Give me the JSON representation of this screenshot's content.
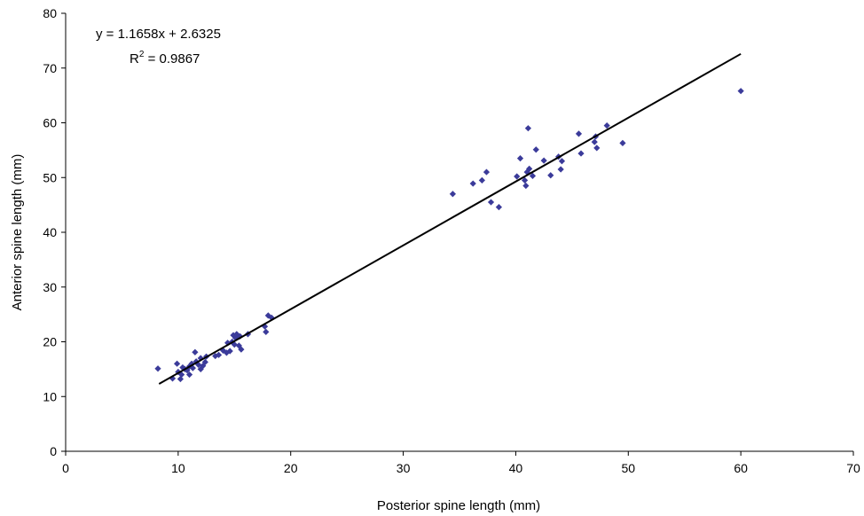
{
  "chart_data": {
    "type": "scatter",
    "xlabel": "Posterior spine length (mm)",
    "ylabel": "Anterior spine length (mm)",
    "xlim": [
      0,
      70
    ],
    "ylim": [
      0,
      80
    ],
    "xticks": [
      0,
      10,
      20,
      30,
      40,
      50,
      60,
      70
    ],
    "yticks": [
      0,
      10,
      20,
      30,
      40,
      50,
      60,
      70,
      80
    ],
    "grid": false,
    "marker_color": "#3b3b9a",
    "trendline": {
      "slope": 1.1658,
      "intercept": 2.6325,
      "x_range": [
        8.3,
        60
      ],
      "color": "#000000"
    },
    "annotation": {
      "equation": "y = 1.1658x + 2.6325",
      "r2_prefix": "R",
      "r2_sup": "2",
      "r2_value": " = 0.9867"
    },
    "points": [
      {
        "x": 8.2,
        "y": 15.1
      },
      {
        "x": 9.5,
        "y": 13.3
      },
      {
        "x": 9.9,
        "y": 16.0
      },
      {
        "x": 10.0,
        "y": 14.5
      },
      {
        "x": 10.2,
        "y": 13.2
      },
      {
        "x": 10.3,
        "y": 14.0
      },
      {
        "x": 10.4,
        "y": 15.3
      },
      {
        "x": 10.6,
        "y": 15.0
      },
      {
        "x": 10.8,
        "y": 14.8
      },
      {
        "x": 11.0,
        "y": 15.5
      },
      {
        "x": 11.0,
        "y": 14.0
      },
      {
        "x": 11.2,
        "y": 16.0
      },
      {
        "x": 11.3,
        "y": 15.2
      },
      {
        "x": 11.5,
        "y": 18.1
      },
      {
        "x": 11.6,
        "y": 16.4
      },
      {
        "x": 11.8,
        "y": 15.8
      },
      {
        "x": 12.0,
        "y": 15.0
      },
      {
        "x": 12.0,
        "y": 17.0
      },
      {
        "x": 12.2,
        "y": 15.6
      },
      {
        "x": 12.4,
        "y": 16.3
      },
      {
        "x": 12.5,
        "y": 17.3
      },
      {
        "x": 13.3,
        "y": 17.4
      },
      {
        "x": 13.6,
        "y": 17.6
      },
      {
        "x": 14.0,
        "y": 18.4
      },
      {
        "x": 14.3,
        "y": 18.0
      },
      {
        "x": 14.4,
        "y": 19.8
      },
      {
        "x": 14.6,
        "y": 18.3
      },
      {
        "x": 14.8,
        "y": 20.0
      },
      {
        "x": 14.9,
        "y": 21.2
      },
      {
        "x": 15.0,
        "y": 19.5
      },
      {
        "x": 15.1,
        "y": 20.7
      },
      {
        "x": 15.2,
        "y": 21.4
      },
      {
        "x": 15.4,
        "y": 19.3
      },
      {
        "x": 15.5,
        "y": 21.0
      },
      {
        "x": 15.6,
        "y": 18.6
      },
      {
        "x": 16.2,
        "y": 21.4
      },
      {
        "x": 17.7,
        "y": 22.8
      },
      {
        "x": 17.8,
        "y": 21.8
      },
      {
        "x": 18.0,
        "y": 24.8
      },
      {
        "x": 18.3,
        "y": 24.4
      },
      {
        "x": 34.4,
        "y": 47.0
      },
      {
        "x": 36.2,
        "y": 48.9
      },
      {
        "x": 37.0,
        "y": 49.5
      },
      {
        "x": 37.4,
        "y": 51.0
      },
      {
        "x": 37.8,
        "y": 45.5
      },
      {
        "x": 38.5,
        "y": 44.6
      },
      {
        "x": 40.1,
        "y": 50.2
      },
      {
        "x": 40.4,
        "y": 53.5
      },
      {
        "x": 40.8,
        "y": 49.5
      },
      {
        "x": 40.9,
        "y": 48.5
      },
      {
        "x": 41.0,
        "y": 51.0
      },
      {
        "x": 41.1,
        "y": 59.0
      },
      {
        "x": 41.2,
        "y": 51.6
      },
      {
        "x": 41.5,
        "y": 50.3
      },
      {
        "x": 41.8,
        "y": 55.1
      },
      {
        "x": 42.5,
        "y": 53.1
      },
      {
        "x": 43.1,
        "y": 50.4
      },
      {
        "x": 43.8,
        "y": 53.8
      },
      {
        "x": 44.0,
        "y": 51.5
      },
      {
        "x": 44.1,
        "y": 53.0
      },
      {
        "x": 45.6,
        "y": 58.0
      },
      {
        "x": 45.8,
        "y": 54.4
      },
      {
        "x": 47.0,
        "y": 56.5
      },
      {
        "x": 47.1,
        "y": 57.5
      },
      {
        "x": 47.2,
        "y": 55.4
      },
      {
        "x": 48.1,
        "y": 59.5
      },
      {
        "x": 49.5,
        "y": 56.3
      },
      {
        "x": 60.0,
        "y": 65.8
      }
    ]
  }
}
